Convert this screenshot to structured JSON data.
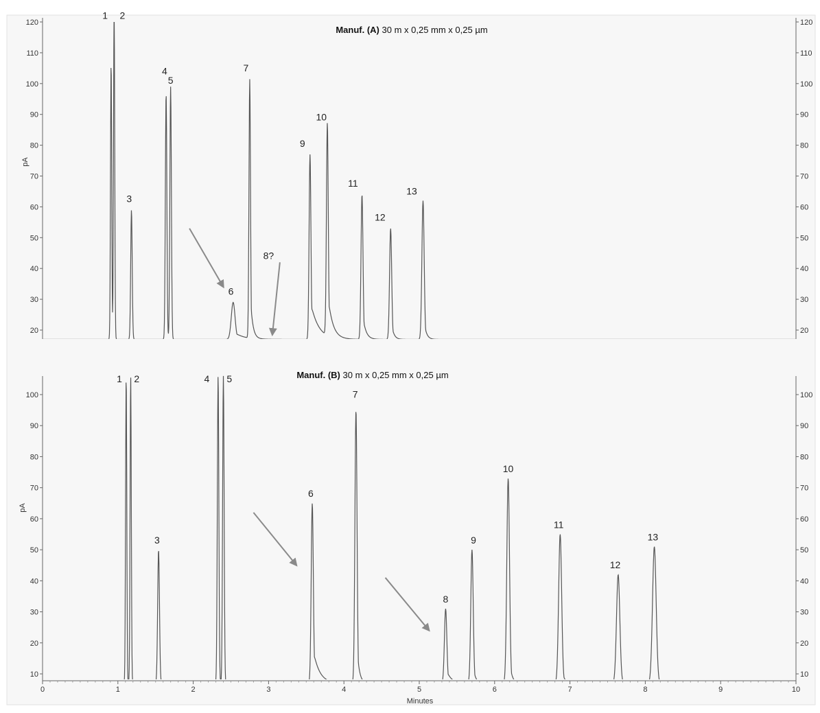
{
  "chart_data": [
    {
      "type": "line",
      "panel": "A",
      "title_bold": "Manuf. (A)",
      "title": "30 m x 0,25 mm x 0,25 µm",
      "ylabel": "pA",
      "ylim": [
        15,
        120
      ],
      "y_ticks": [
        10,
        20,
        30,
        40,
        50,
        60,
        70,
        80,
        90,
        100,
        110,
        120
      ],
      "xlim": [
        0,
        10
      ],
      "baseline": 17,
      "peaks": [
        {
          "label": "1",
          "x": 0.91,
          "y": 107,
          "w": 0.008
        },
        {
          "label": "2",
          "x": 0.95,
          "y": 125,
          "w": 0.008
        },
        {
          "label": "3",
          "x": 1.18,
          "y": 59,
          "w": 0.01
        },
        {
          "label": "4",
          "x": 1.64,
          "y": 97,
          "w": 0.01
        },
        {
          "label": "5",
          "x": 1.7,
          "y": 99,
          "w": 0.01
        },
        {
          "label": "6",
          "x": 2.53,
          "y": 29,
          "w": 0.025,
          "tail": 0.12
        },
        {
          "label": "7",
          "x": 2.75,
          "y": 101,
          "w": 0.01,
          "tail": 0.03
        },
        {
          "label": "9",
          "x": 3.55,
          "y": 77,
          "w": 0.012,
          "tail": 0.1
        },
        {
          "label": "10",
          "x": 3.78,
          "y": 86,
          "w": 0.012,
          "tail": 0.06
        },
        {
          "label": "11",
          "x": 4.24,
          "y": 64,
          "w": 0.013,
          "tail": 0.04
        },
        {
          "label": "12",
          "x": 4.62,
          "y": 53,
          "w": 0.014,
          "tail": 0.03
        },
        {
          "label": "13",
          "x": 5.05,
          "y": 62,
          "w": 0.015,
          "tail": 0.03
        }
      ],
      "labels": [
        {
          "text": "1",
          "x": 0.83,
          "y": 121
        },
        {
          "text": "2",
          "x": 1.06,
          "y": 121
        },
        {
          "text": "3",
          "x": 1.15,
          "y": 61.5
        },
        {
          "text": "4",
          "x": 1.62,
          "y": 103
        },
        {
          "text": "5",
          "x": 1.7,
          "y": 100
        },
        {
          "text": "6",
          "x": 2.5,
          "y": 31.5
        },
        {
          "text": "7",
          "x": 2.7,
          "y": 104
        },
        {
          "text": "8?",
          "x": 3.0,
          "y": 43
        },
        {
          "text": "9",
          "x": 3.45,
          "y": 79.5
        },
        {
          "text": "10",
          "x": 3.7,
          "y": 88
        },
        {
          "text": "11",
          "x": 4.12,
          "y": 66.5
        },
        {
          "text": "12",
          "x": 4.48,
          "y": 55.5
        },
        {
          "text": "13",
          "x": 4.9,
          "y": 64
        }
      ],
      "arrows": [
        {
          "from": [
            1.95,
            53
          ],
          "to": [
            2.4,
            34
          ]
        },
        {
          "from": [
            3.15,
            42
          ],
          "to": [
            3.05,
            18.5
          ]
        }
      ]
    },
    {
      "type": "line",
      "panel": "B",
      "title_bold": "Manuf. (B)",
      "title": "30 m x 0,25 mm x 0,25 µm",
      "ylabel": "pA",
      "ylim": [
        5,
        100
      ],
      "y_ticks": [
        10,
        20,
        30,
        40,
        50,
        60,
        70,
        80,
        90,
        100
      ],
      "xlim": [
        0,
        10
      ],
      "x_ticks": [
        0,
        1,
        2,
        3,
        4,
        5,
        6,
        7,
        8,
        9,
        10
      ],
      "xlabel": "Minutes",
      "baseline": 7,
      "peaks": [
        {
          "label": "1",
          "x": 1.11,
          "y": 106,
          "w": 0.008
        },
        {
          "label": "2",
          "x": 1.17,
          "y": 106,
          "w": 0.008
        },
        {
          "label": "3",
          "x": 1.54,
          "y": 50,
          "w": 0.012
        },
        {
          "label": "4",
          "x": 2.33,
          "y": 106,
          "w": 0.01
        },
        {
          "label": "5",
          "x": 2.4,
          "y": 106,
          "w": 0.01
        },
        {
          "label": "6",
          "x": 3.58,
          "y": 65,
          "w": 0.014,
          "tail": 0.08
        },
        {
          "label": "7",
          "x": 4.16,
          "y": 95,
          "w": 0.014,
          "tail": 0.03
        },
        {
          "label": "8",
          "x": 5.35,
          "y": 31,
          "w": 0.016,
          "tail": 0.06
        },
        {
          "label": "9",
          "x": 5.7,
          "y": 50,
          "w": 0.016,
          "tail": 0.03
        },
        {
          "label": "10",
          "x": 6.18,
          "y": 73,
          "w": 0.018,
          "tail": 0.03
        },
        {
          "label": "11",
          "x": 6.87,
          "y": 55,
          "w": 0.02,
          "tail": 0.03
        },
        {
          "label": "12",
          "x": 7.64,
          "y": 42,
          "w": 0.022,
          "tail": 0.03
        },
        {
          "label": "13",
          "x": 8.12,
          "y": 51,
          "w": 0.024,
          "tail": 0.03
        }
      ],
      "labels": [
        {
          "text": "1",
          "x": 1.02,
          "y": 104
        },
        {
          "text": "2",
          "x": 1.25,
          "y": 104
        },
        {
          "text": "3",
          "x": 1.52,
          "y": 52
        },
        {
          "text": "4",
          "x": 2.18,
          "y": 104
        },
        {
          "text": "5",
          "x": 2.48,
          "y": 104
        },
        {
          "text": "6",
          "x": 3.56,
          "y": 67
        },
        {
          "text": "7",
          "x": 4.15,
          "y": 99
        },
        {
          "text": "8",
          "x": 5.35,
          "y": 33
        },
        {
          "text": "9",
          "x": 5.72,
          "y": 52
        },
        {
          "text": "10",
          "x": 6.18,
          "y": 75
        },
        {
          "text": "11",
          "x": 6.85,
          "y": 57
        },
        {
          "text": "12",
          "x": 7.6,
          "y": 44
        },
        {
          "text": "13",
          "x": 8.1,
          "y": 53
        }
      ],
      "arrows": [
        {
          "from": [
            2.8,
            62
          ],
          "to": [
            3.37,
            45
          ]
        },
        {
          "from": [
            4.55,
            41
          ],
          "to": [
            5.13,
            24
          ]
        }
      ]
    }
  ]
}
